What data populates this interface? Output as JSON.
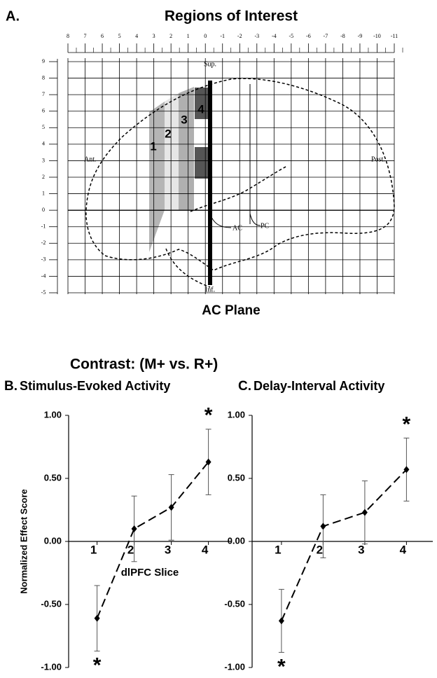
{
  "panel_a": {
    "panel": "A.",
    "title": "Regions of Interest",
    "xlabel": "AC Plane",
    "xticks": [
      8,
      7,
      6,
      5,
      4,
      3,
      2,
      1,
      0,
      -1,
      -2,
      -3,
      -4,
      -5,
      -6,
      -7,
      -8,
      -9,
      -10,
      -11
    ],
    "yticks": [
      9,
      8,
      7,
      6,
      5,
      4,
      3,
      2,
      1,
      0,
      -1,
      -2,
      -3,
      -4,
      -5
    ],
    "regions": [
      "1",
      "2",
      "3",
      "4"
    ],
    "labels": {
      "sup": "Sup.",
      "inf": "Inf.",
      "ant": "Ant.",
      "post": "Post.",
      "ac": "AC",
      "pc": "PC"
    }
  },
  "contrast_title": "Contrast: (M+ vs. R+)",
  "chart_data": [
    {
      "type": "line",
      "panel": "B.",
      "title": "Stimulus-Evoked Activity",
      "ylabel": "Normalized Effect Score",
      "xlabel": "dlPFC Slice",
      "categories": [
        "1",
        "2",
        "3",
        "4"
      ],
      "values": [
        -0.61,
        0.1,
        0.27,
        0.63
      ],
      "errors": [
        0.26,
        0.26,
        0.26,
        0.26
      ],
      "annotations": [
        "*",
        null,
        null,
        "*"
      ],
      "color": "#000000",
      "ylim": [
        -1,
        1
      ],
      "yticks": [
        {
          "value": 1,
          "label": "1.00"
        },
        {
          "value": 0.5,
          "label": "0.50"
        },
        {
          "value": 0,
          "label": "0.00"
        },
        {
          "value": -0.5,
          "label": "-0.50"
        },
        {
          "value": -1,
          "label": "-1.00"
        }
      ]
    },
    {
      "type": "line",
      "panel": "C.",
      "title": "Delay-Interval Activity",
      "categories": [
        "1",
        "2",
        "3",
        "4"
      ],
      "values": [
        -0.63,
        0.12,
        0.23,
        0.57
      ],
      "errors": [
        0.25,
        0.25,
        0.25,
        0.25
      ],
      "annotations": [
        "*",
        null,
        null,
        "*"
      ],
      "color": "#000000",
      "ylim": [
        -1,
        1
      ],
      "yticks": [
        {
          "value": 1,
          "label": "1.00"
        },
        {
          "value": 0.5,
          "label": "0.50"
        },
        {
          "value": 0,
          "label": "0.00"
        },
        {
          "value": -0.5,
          "label": "-0.50"
        },
        {
          "value": -1,
          "label": "-1.00"
        }
      ]
    }
  ]
}
